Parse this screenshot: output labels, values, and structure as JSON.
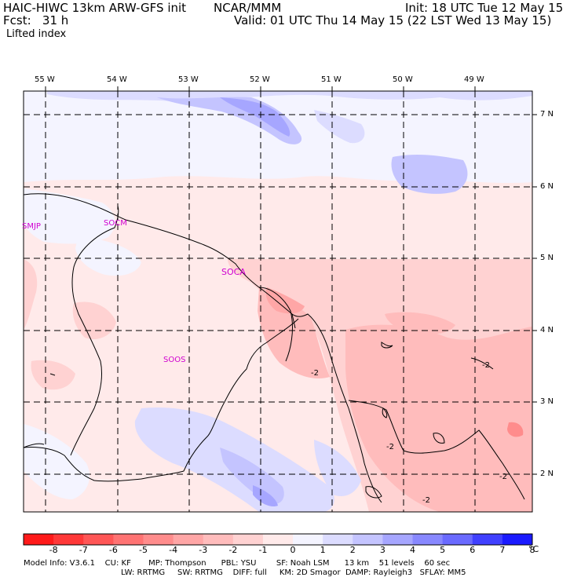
{
  "header": {
    "model": "HAIC-HIWC 13km ARW-GFS init",
    "org": "NCAR/MMM",
    "init": "Init: 18 UTC Tue 12 May 15",
    "fcst": "Fcst:   31 h",
    "valid": "Valid: 01 UTC Thu 14 May 15 (22 LST Wed 13 May 15)",
    "field": "Lifted index"
  },
  "axes": {
    "lon_labels": [
      "55 W",
      "54 W",
      "53 W",
      "52 W",
      "51 W",
      "50 W",
      "49 W"
    ],
    "lat_labels": [
      "7 N",
      "6 N",
      "5 N",
      "4 N",
      "3 N",
      "2 N"
    ]
  },
  "stations": [
    "SMJP",
    "SOCM",
    "SOCA",
    "SOOS"
  ],
  "contour_labels": [
    "-2",
    "-2",
    "-2",
    "-2",
    "-2"
  ],
  "colorbar": {
    "labels": [
      "-8",
      "-7",
      "-6",
      "-5",
      "-4",
      "-3",
      "-2",
      "-1",
      "0",
      "1",
      "2",
      "3",
      "4",
      "5",
      "6",
      "7",
      "8"
    ],
    "unit": "°C",
    "colors": [
      "#ff1a1a",
      "#ff3838",
      "#ff5656",
      "#ff7373",
      "#ff8c8c",
      "#ffa6a6",
      "#ffbcbc",
      "#ffd2d2",
      "#ffeaea",
      "#f4f4ff",
      "#dcdcff",
      "#c4c4ff",
      "#a6a6ff",
      "#8888ff",
      "#6a6aff",
      "#4040ff",
      "#1a1aff"
    ]
  },
  "footer": {
    "line1": "Model Info: V3.6.1    CU: KF       MP: Thompson      PBL: YSU        SF: Noah LSM      13 km    51 levels    60 sec",
    "line2": "LW: RRTMG     SW: RRTMG    DIFF: full     KM: 2D Smagor  DAMP: Rayleigh3   SFLAY: MM5"
  }
}
